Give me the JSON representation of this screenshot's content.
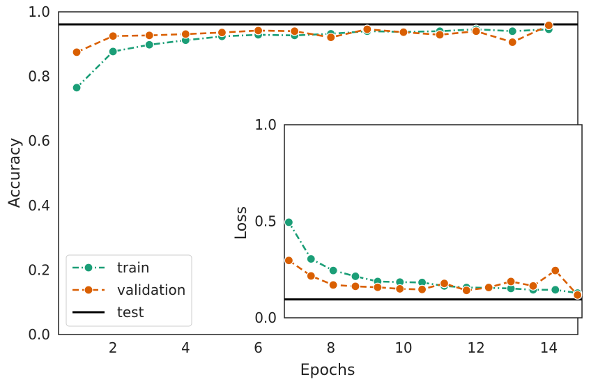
{
  "chart_data": [
    {
      "type": "line",
      "xlabel": "Epochs",
      "ylabel": "Accuracy",
      "xlim": [
        0.5,
        14.8
      ],
      "ylim": [
        0.0,
        1.0
      ],
      "x_ticks": [
        2,
        4,
        6,
        8,
        10,
        12,
        14
      ],
      "y_ticks": [
        0.0,
        0.2,
        0.4,
        0.6,
        0.8,
        1.0
      ],
      "x_tick_labels": [
        "2",
        "4",
        "6",
        "8",
        "10",
        "12",
        "14"
      ],
      "y_tick_labels": [
        "0.0",
        "0.2",
        "0.4",
        "0.6",
        "0.8",
        "1.0"
      ],
      "x": [
        1,
        2,
        3,
        4,
        5,
        6,
        7,
        8,
        9,
        10,
        11,
        12,
        13,
        14
      ],
      "series": [
        {
          "name": "train",
          "color": "#1b9e77",
          "linestyle": "dashdot",
          "marker": "circle",
          "values": [
            0.765,
            0.877,
            0.898,
            0.912,
            0.924,
            0.929,
            0.927,
            0.932,
            0.94,
            0.938,
            0.94,
            0.946,
            0.94,
            0.946
          ]
        },
        {
          "name": "validation",
          "color": "#d95f02",
          "linestyle": "dashed",
          "marker": "circle",
          "values": [
            0.875,
            0.925,
            0.927,
            0.931,
            0.936,
            0.942,
            0.94,
            0.921,
            0.946,
            0.937,
            0.929,
            0.94,
            0.906,
            0.958
          ]
        }
      ],
      "hline": {
        "name": "test",
        "value": 0.961,
        "color": "#000000"
      },
      "grid": false,
      "legend": {
        "position": "lower-left",
        "entries": [
          "train",
          "validation",
          "test"
        ]
      }
    },
    {
      "type": "line",
      "xlabel": "",
      "ylabel": "Loss",
      "xlim": [
        0.8,
        14.2
      ],
      "ylim": [
        0.0,
        1.0
      ],
      "y_ticks": [
        0.0,
        0.5,
        1.0
      ],
      "y_tick_labels": [
        "0.0",
        "0.5",
        "1.0"
      ],
      "x_ticks": [],
      "x": [
        1,
        2,
        3,
        4,
        5,
        6,
        7,
        8,
        9,
        10,
        11,
        12,
        13,
        14
      ],
      "series": [
        {
          "name": "train",
          "color": "#1b9e77",
          "linestyle": "dashdot",
          "marker": "circle",
          "values": [
            0.495,
            0.305,
            0.245,
            0.215,
            0.188,
            0.185,
            0.183,
            0.165,
            0.157,
            0.155,
            0.152,
            0.145,
            0.145,
            0.128
          ]
        },
        {
          "name": "validation",
          "color": "#d95f02",
          "linestyle": "dashed",
          "marker": "circle",
          "values": [
            0.297,
            0.217,
            0.17,
            0.163,
            0.158,
            0.15,
            0.147,
            0.178,
            0.142,
            0.157,
            0.188,
            0.165,
            0.245,
            0.118
          ]
        }
      ],
      "hline": {
        "name": "test",
        "value": 0.095,
        "color": "#000000"
      },
      "grid": false
    }
  ]
}
